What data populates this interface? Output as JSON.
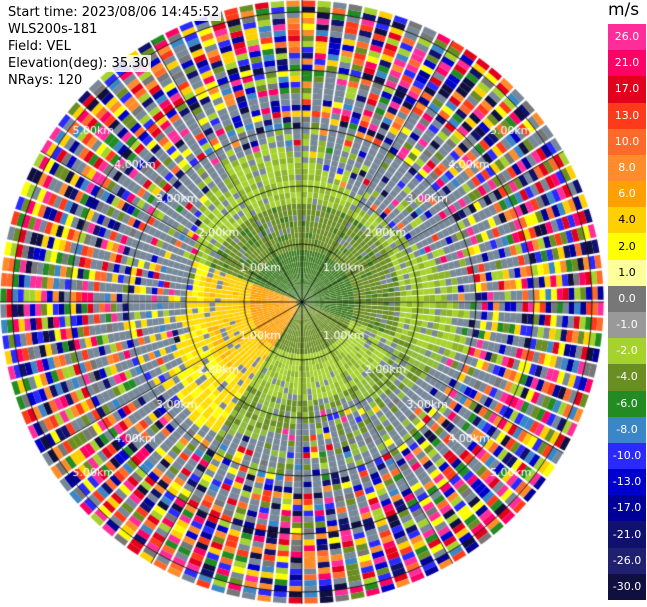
{
  "header": {
    "start_time": "Start time: 2023/08/06 14:45:52",
    "instrument": "WLS200s-181",
    "field": "Field: VEL",
    "elevation": "Elevation(deg): 35.30",
    "nrays": "NRays: 120"
  },
  "colorbar": {
    "title": "m/s",
    "ticks": [
      "26.0",
      "21.0",
      "17.0",
      "13.0",
      "10.0",
      "8.0",
      "6.0",
      "4.0",
      "2.0",
      "1.0",
      "0.0",
      "-1.0",
      "-2.0",
      "-4.0",
      "-6.0",
      "-8.0",
      "-10.0",
      "-13.0",
      "-17.0",
      "-21.0",
      "-26.0",
      "-30.0"
    ],
    "colors": [
      "#ff2d9a",
      "#ff0066",
      "#e3001c",
      "#ff3a1a",
      "#ff6a2a",
      "#ff8c2a",
      "#ffa000",
      "#ffd000",
      "#ffff00",
      "#ffff99",
      "#777777",
      "#999999",
      "#a6d22e",
      "#6b8e23",
      "#228b22",
      "#3a86c8",
      "#2a2aff",
      "#0000cc",
      "#000099",
      "#10106e",
      "#202070",
      "#101040"
    ]
  },
  "range_labels": [
    "1.00km",
    "2.00km",
    "3.00km",
    "4.00km",
    "5.00km"
  ],
  "chart_data": {
    "type": "heatmap",
    "projection": "PPI (plan position indicator)",
    "field": "VEL",
    "units": "m/s",
    "rays": 120,
    "range_rings_km": [
      1,
      2,
      3,
      4,
      5
    ],
    "vmin": -30.0,
    "vmax": 26.0,
    "pattern": "Coherent wind signal within ~2.5 km; positive velocity (yellow/orange) to the south, near-zero/negative (green) to the north and east; noisy multicolored returns beyond ~3 km."
  }
}
